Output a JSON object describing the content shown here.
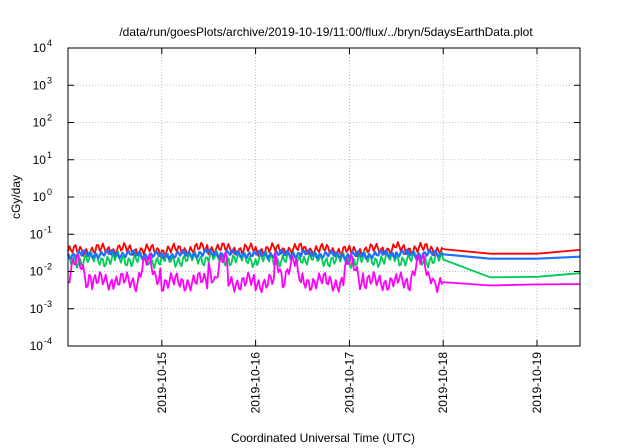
{
  "chart_data": {
    "type": "line",
    "title": "/data/run/goesPlots/archive/2019-10-19/11:00/flux/../bryn/5daysEarthData.plot",
    "xlabel": "Coordinated Universal Time (UTC)",
    "ylabel": "cGy/day",
    "y_scale": "log",
    "ylim": [
      0.0001,
      10000
    ],
    "y_ticks": [
      {
        "base": "10",
        "exp": "4"
      },
      {
        "base": "10",
        "exp": "3"
      },
      {
        "base": "10",
        "exp": "2"
      },
      {
        "base": "10",
        "exp": "1"
      },
      {
        "base": "10",
        "exp": "0"
      },
      {
        "base": "10",
        "exp": "-1"
      },
      {
        "base": "10",
        "exp": "-2"
      },
      {
        "base": "10",
        "exp": "-3"
      },
      {
        "base": "10",
        "exp": "-4"
      }
    ],
    "xlim": [
      "2019-10-14T00:00",
      "2019-10-19T11:00"
    ],
    "x_ticks": [
      "2019-10-15",
      "2019-10-16",
      "2019-10-17",
      "2019-10-18",
      "2019-10-19"
    ],
    "grid": true,
    "series": [
      {
        "color": "#ff0000",
        "x": [
          "2019-10-14T00:00",
          "2019-10-14T12:00",
          "2019-10-15T00:00",
          "2019-10-15T12:00",
          "2019-10-16T00:00",
          "2019-10-16T12:00",
          "2019-10-17T00:00",
          "2019-10-17T12:00",
          "2019-10-18T00:00",
          "2019-10-18T12:00",
          "2019-10-19T00:00",
          "2019-10-19T11:00"
        ],
        "y": [
          0.035,
          0.04,
          0.036,
          0.042,
          0.038,
          0.04,
          0.036,
          0.041,
          0.04,
          0.03,
          0.03,
          0.038
        ]
      },
      {
        "color": "#00cc55",
        "x": [
          "2019-10-14T00:00",
          "2019-10-14T12:00",
          "2019-10-15T00:00",
          "2019-10-15T12:00",
          "2019-10-16T00:00",
          "2019-10-16T12:00",
          "2019-10-17T00:00",
          "2019-10-17T12:00",
          "2019-10-18T00:00",
          "2019-10-18T12:00",
          "2019-10-19T00:00",
          "2019-10-19T11:00"
        ],
        "y": [
          0.02,
          0.022,
          0.02,
          0.023,
          0.021,
          0.022,
          0.02,
          0.022,
          0.021,
          0.007,
          0.0072,
          0.009
        ]
      },
      {
        "color": "#1f6fff",
        "x": [
          "2019-10-14T00:00",
          "2019-10-14T12:00",
          "2019-10-15T00:00",
          "2019-10-15T12:00",
          "2019-10-16T00:00",
          "2019-10-16T12:00",
          "2019-10-17T00:00",
          "2019-10-17T12:00",
          "2019-10-18T00:00",
          "2019-10-18T12:00",
          "2019-10-19T00:00",
          "2019-10-19T11:00"
        ],
        "y": [
          0.028,
          0.03,
          0.027,
          0.031,
          0.029,
          0.03,
          0.027,
          0.03,
          0.029,
          0.022,
          0.022,
          0.025
        ]
      },
      {
        "color": "#ff00ff",
        "x": [
          "2019-10-14T00:00",
          "2019-10-14T12:00",
          "2019-10-15T00:00",
          "2019-10-15T12:00",
          "2019-10-16T00:00",
          "2019-10-16T12:00",
          "2019-10-17T00:00",
          "2019-10-17T12:00",
          "2019-10-18T00:00",
          "2019-10-18T12:00",
          "2019-10-19T00:00",
          "2019-10-19T11:00"
        ],
        "y": [
          0.005,
          0.0055,
          0.005,
          0.0055,
          0.005,
          0.0056,
          0.005,
          0.0055,
          0.0052,
          0.0042,
          0.0045,
          0.0046
        ]
      }
    ]
  }
}
